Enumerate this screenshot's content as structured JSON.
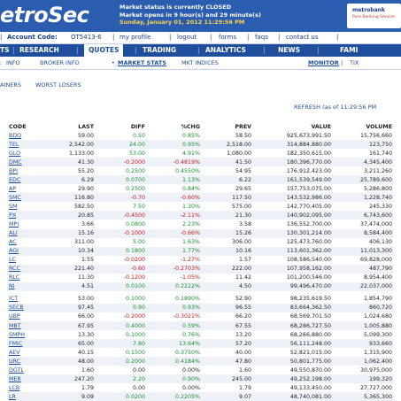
{
  "header": {
    "logo": "etroSec",
    "status_line1": "Market status is currently CLOSED",
    "status_line2": "Market opens in 9 hour(s) and 29 minute(s)",
    "clock": "Sunday, January 01, 2012 11:29:56 PM",
    "brand_name": "metrobank",
    "brand_tag": "Pure Banking Service"
  },
  "account_bar": {
    "account_label": "Account Code:",
    "account_value": "OT5413-6",
    "links": [
      "my profile",
      "logout",
      "forms",
      "faqs",
      "contact us"
    ]
  },
  "nav": {
    "items": [
      "TS",
      "RESEARCH",
      "QUOTES",
      "TRADING",
      "ANALYTICS",
      "NEWS",
      "FAMI"
    ]
  },
  "subnav": {
    "items": [
      "INFO",
      "BROKER INFO",
      "MARKET STATS",
      "MKT INDICES"
    ],
    "right": [
      "MONITOR",
      "TIX"
    ]
  },
  "subtabs": [
    "AINERS",
    "WORST LOSERS"
  ],
  "refresh": {
    "link": "REFRESH",
    "as_of": "(as of 11:29:56 PM"
  },
  "table": {
    "headers": [
      "CODE",
      "LAST",
      "DIFF",
      "%CHG",
      "PREV",
      "VALUE",
      "VOLUME"
    ],
    "group1": [
      {
        "code": "BDO",
        "last": "59.00",
        "diff": "0.50",
        "chg": "0.85%",
        "prev": "58.50",
        "value": "925,673,991.50",
        "volume": "15,756,660",
        "dir": "pos"
      },
      {
        "code": "TEL",
        "last": "2,542.00",
        "diff": "24.00",
        "chg": "0.95%",
        "prev": "2,518.00",
        "value": "314,884,880.00",
        "volume": "123,750",
        "dir": "pos"
      },
      {
        "code": "GLO",
        "last": "1,133.00",
        "diff": "53.00",
        "chg": "4.91%",
        "prev": "1,080.00",
        "value": "182,350,615.00",
        "volume": "161,740",
        "dir": "pos"
      },
      {
        "code": "DMC",
        "last": "41.30",
        "diff": "-0.2000",
        "chg": "-0.4819%",
        "prev": "41.50",
        "value": "180,396,770.00",
        "volume": "4,345,400",
        "dir": "neg"
      },
      {
        "code": "BPI",
        "last": "55.20",
        "diff": "0.2500",
        "chg": "0.4550%",
        "prev": "54.95",
        "value": "176,912,423.00",
        "volume": "3,211,260",
        "dir": "pos"
      },
      {
        "code": "EDC",
        "last": "6.29",
        "diff": "0.0700",
        "chg": "1.13%",
        "prev": "6.22",
        "value": "161,539,549.00",
        "volume": "25,789,600",
        "dir": "pos"
      },
      {
        "code": "AP",
        "last": "29.90",
        "diff": "0.2500",
        "chg": "0.84%",
        "prev": "29.65",
        "value": "157,753,075.00",
        "volume": "5,286,800",
        "dir": "pos"
      },
      {
        "code": "SMC",
        "last": "116.80",
        "diff": "-0.70",
        "chg": "-0.60%",
        "prev": "117.50",
        "value": "143,532,986.00",
        "volume": "1,228,740",
        "dir": "neg"
      },
      {
        "code": "SM",
        "last": "582.50",
        "diff": "7.50",
        "chg": "1.30%",
        "prev": "575.00",
        "value": "142,770,405.00",
        "volume": "245,330",
        "dir": "pos"
      },
      {
        "code": "PX",
        "last": "20.85",
        "diff": "-0.4500",
        "chg": "-2.11%",
        "prev": "21.30",
        "value": "140,902,095.00",
        "volume": "6,743,600",
        "dir": "neg"
      },
      {
        "code": "MPI",
        "last": "3.66",
        "diff": "0.0800",
        "chg": "2.23%",
        "prev": "3.58",
        "value": "136,552,700.00",
        "volume": "37,474,000",
        "dir": "pos"
      },
      {
        "code": "ALI",
        "last": "15.16",
        "diff": "-0.1000",
        "chg": "-0.66%",
        "prev": "15.26",
        "value": "130,301,214.00",
        "volume": "8,584,400",
        "dir": "neg"
      },
      {
        "code": "AC",
        "last": "311.00",
        "diff": "5.00",
        "chg": "1.63%",
        "prev": "306.00",
        "value": "125,473,760.00",
        "volume": "406,130",
        "dir": "pos"
      },
      {
        "code": "AGI",
        "last": "10.34",
        "diff": "0.1800",
        "chg": "1.77%",
        "prev": "10.16",
        "value": "113,601,362.00",
        "volume": "11,013,300",
        "dir": "pos"
      },
      {
        "code": "LC",
        "last": "1.55",
        "diff": "-0.0200",
        "chg": "-1.27%",
        "prev": "1.57",
        "value": "108,586,540.00",
        "volume": "69,828,000",
        "dir": "neg"
      },
      {
        "code": "RCC",
        "last": "221.40",
        "diff": "-0.60",
        "chg": "-0.2703%",
        "prev": "222.00",
        "value": "107,958,162.00",
        "volume": "487,790",
        "dir": "neg"
      },
      {
        "code": "RLC",
        "last": "11.30",
        "diff": "-0.1200",
        "chg": "-1.05%",
        "prev": "11.42",
        "value": "101,200,546.00",
        "volume": "8,954,400",
        "dir": "neg"
      },
      {
        "code": "NI",
        "last": "4.51",
        "diff": "0.0100",
        "chg": "0.2222%",
        "prev": "4.50",
        "value": "99,496,470.00",
        "volume": "22,037,000",
        "dir": "pos"
      }
    ],
    "group2": [
      {
        "code": "ICT",
        "last": "53.00",
        "diff": "0.1000",
        "chg": "0.1890%",
        "prev": "52.90",
        "value": "98,235,619.50",
        "volume": "1,854,790",
        "dir": "pos"
      },
      {
        "code": "SECB",
        "last": "97.45",
        "diff": "0.90",
        "chg": "0.93%",
        "prev": "96.55",
        "value": "83,664,362.50",
        "volume": "860,720",
        "dir": "pos"
      },
      {
        "code": "UBP",
        "last": "66.00",
        "diff": "-0.2000",
        "chg": "-0.3021%",
        "prev": "66.20",
        "value": "68,569,701.50",
        "volume": "1,024,680",
        "dir": "neg"
      },
      {
        "code": "MBT",
        "last": "67.95",
        "diff": "0.4000",
        "chg": "0.59%",
        "prev": "67.55",
        "value": "68,286,727.50",
        "volume": "1,005,880",
        "dir": "pos"
      },
      {
        "code": "SMPH",
        "last": "13.30",
        "diff": "0.1000",
        "chg": "0.76%",
        "prev": "13.20",
        "value": "68,266,880.00",
        "volume": "5,099,300",
        "dir": "pos"
      },
      {
        "code": "FMIC",
        "last": "65.00",
        "diff": "7.80",
        "chg": "13.64%",
        "prev": "57.20",
        "value": "56,111,248.00",
        "volume": "933,660",
        "dir": "pos"
      },
      {
        "code": "AEV",
        "last": "40.15",
        "diff": "0.1500",
        "chg": "0.3750%",
        "prev": "40.00",
        "value": "52,821,015.00",
        "volume": "1,315,900",
        "dir": "pos"
      },
      {
        "code": "URC",
        "last": "48.00",
        "diff": "0.2000",
        "chg": "0.4184%",
        "prev": "47.80",
        "value": "50,801,775.00",
        "volume": "1,062,400",
        "dir": "pos"
      },
      {
        "code": "DGTL",
        "last": "1.60",
        "diff": "0.00",
        "chg": "0.00%",
        "prev": "1.60",
        "value": "49,550,870.00",
        "volume": "30,975,000",
        "dir": "neu"
      },
      {
        "code": "MER",
        "last": "247.20",
        "diff": "2.20",
        "chg": "0.90%",
        "prev": "245.00",
        "value": "49,252,198.00",
        "volume": "199,320",
        "dir": "pos"
      },
      {
        "code": "LCB",
        "last": "1.79",
        "diff": "0.00",
        "chg": "0.00%",
        "prev": "1.79",
        "value": "49,133,450.00",
        "volume": "27,727,000",
        "dir": "neu"
      },
      {
        "code": "LR",
        "last": "9.09",
        "diff": "0.0200",
        "chg": "0.2205%",
        "prev": "9.07",
        "value": "48,740,081.00",
        "volume": "5,365,300",
        "dir": "pos"
      }
    ]
  },
  "colors": {
    "header_blue": "#2a5db0",
    "nav_blue": "#1f4f9c",
    "positive": "#1b8f2e",
    "negative": "#d01515",
    "row_alt": "#eef2f8"
  }
}
